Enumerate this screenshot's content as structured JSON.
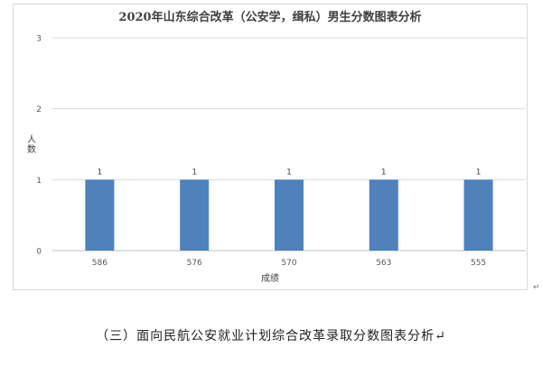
{
  "chart_data": {
    "type": "bar",
    "title": "2020年山东综合改革（公安学，缉私）男生分数图表分析",
    "xlabel": "成绩",
    "ylabel": "人数",
    "categories": [
      "586",
      "576",
      "570",
      "563",
      "555"
    ],
    "values": [
      1,
      1,
      1,
      1,
      1
    ],
    "data_labels": [
      "1",
      "1",
      "1",
      "1",
      "1"
    ],
    "ylim": [
      0,
      3
    ],
    "yticks": [
      "0",
      "1",
      "2",
      "3"
    ],
    "grid": true,
    "bar_color": "#4f81bd"
  },
  "edge_mark": "↵",
  "caption": "（三）面向民航公安就业计划综合改革录取分数图表分析↵"
}
